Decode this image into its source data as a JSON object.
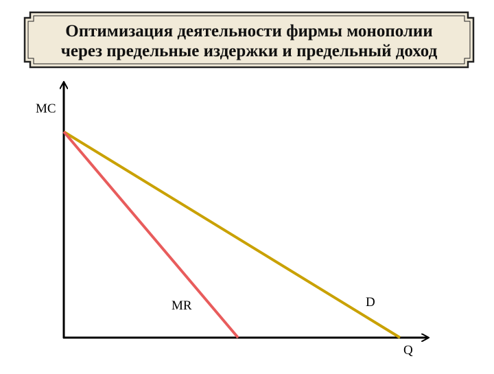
{
  "header": {
    "title_lines": [
      "Оптимизация деятельности фирмы монополии",
      "через предельные издержки и предельный доход"
    ]
  },
  "diagram": {
    "y_axis_label": "MC",
    "x_axis_label": "Q",
    "curves": [
      {
        "label": "MR"
      },
      {
        "label": "D"
      }
    ]
  }
}
